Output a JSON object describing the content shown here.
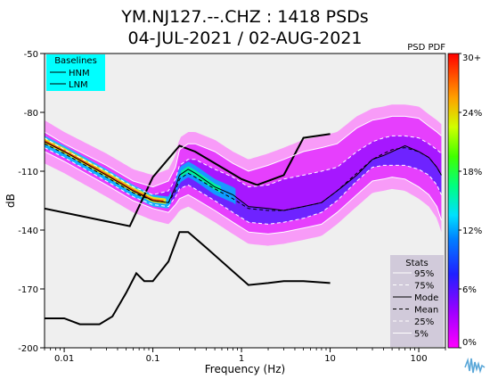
{
  "chart_data": {
    "type": "heatmap",
    "title": "YM.NJ127.--.CHZ : 1418 PSDs",
    "subtitle": "04-JUL-2021 / 02-AUG-2021",
    "xlabel": "Frequency (Hz)",
    "ylabel": "dB",
    "x_scale": "log",
    "xlim": [
      0.006,
      200
    ],
    "ylim": [
      -200,
      -50
    ],
    "x_ticks": [
      {
        "value": 0.01,
        "label": "0.01"
      },
      {
        "value": 0.1,
        "label": "0.1"
      },
      {
        "value": 1,
        "label": "1"
      },
      {
        "value": 10,
        "label": "10"
      },
      {
        "value": 100,
        "label": "100"
      }
    ],
    "y_ticks": [
      {
        "value": -50,
        "label": "-50"
      },
      {
        "value": -80,
        "label": "-80"
      },
      {
        "value": -110,
        "label": "-110"
      },
      {
        "value": -140,
        "label": "-140"
      },
      {
        "value": -170,
        "label": "-170"
      },
      {
        "value": -200,
        "label": "-200"
      }
    ],
    "colorbar": {
      "label": "PSD PDF",
      "ticks": [
        "0%",
        "6%",
        "12%",
        "18%",
        "24%",
        "30+"
      ],
      "colors": [
        "#ff00ff",
        "#8000ff",
        "#0000ff",
        "#00a0ff",
        "#00ffff",
        "#00ff80",
        "#40ff00",
        "#ffff00",
        "#ff8000",
        "#ff0000"
      ]
    },
    "baselines": {
      "title": "Baselines",
      "items": [
        "HNM",
        "LNM"
      ],
      "HNM": [
        [
          0.006,
          -129
        ],
        [
          0.055,
          -138
        ],
        [
          0.1,
          -113
        ],
        [
          0.2,
          -97
        ],
        [
          0.3,
          -100
        ],
        [
          1.0,
          -114
        ],
        [
          1.5,
          -117
        ],
        [
          3.0,
          -112
        ],
        [
          5.0,
          -93
        ],
        [
          10,
          -91
        ]
      ],
      "LNM": [
        [
          0.006,
          -185
        ],
        [
          0.01,
          -185
        ],
        [
          0.015,
          -188
        ],
        [
          0.025,
          -188
        ],
        [
          0.035,
          -184
        ],
        [
          0.05,
          -172
        ],
        [
          0.065,
          -162
        ],
        [
          0.08,
          -166
        ],
        [
          0.1,
          -166
        ],
        [
          0.15,
          -156
        ],
        [
          0.2,
          -141
        ],
        [
          0.25,
          -141
        ],
        [
          0.4,
          -149
        ],
        [
          0.8,
          -161
        ],
        [
          1.2,
          -168
        ],
        [
          2.0,
          -167
        ],
        [
          3.0,
          -166
        ],
        [
          5.0,
          -166
        ],
        [
          10,
          -167
        ]
      ]
    },
    "stats": {
      "title": "Stats",
      "items": [
        {
          "label": "95%",
          "style": "solid-white"
        },
        {
          "label": "75%",
          "style": "dashed-white"
        },
        {
          "label": "Mode",
          "style": "solid-black"
        },
        {
          "label": "Mean",
          "style": "dashed-black"
        },
        {
          "label": "25%",
          "style": "dashed-white"
        },
        {
          "label": "5%",
          "style": "solid-white"
        }
      ],
      "x": [
        0.006,
        0.01,
        0.03,
        0.06,
        0.1,
        0.15,
        0.18,
        0.2,
        0.25,
        0.3,
        0.5,
        0.8,
        1.2,
        2,
        3,
        5,
        8,
        12,
        20,
        30,
        40,
        50,
        70,
        100,
        130,
        160,
        180
      ],
      "p95": [
        -90,
        -96,
        -107,
        -115,
        -118,
        -115,
        -108,
        -99,
        -96,
        -96,
        -100,
        -106,
        -110,
        -107,
        -104,
        -100,
        -98,
        -96,
        -88,
        -84,
        -83,
        -82,
        -82,
        -83,
        -87,
        -90,
        -92
      ],
      "p75": [
        -93,
        -99,
        -110,
        -118,
        -122,
        -120,
        -114,
        -107,
        -104,
        -104,
        -109,
        -113,
        -118,
        -117,
        -114,
        -112,
        -110,
        -108,
        -100,
        -95,
        -93,
        -92,
        -92,
        -93,
        -96,
        -99,
        -101
      ],
      "mode": [
        -95,
        -100,
        -112,
        -120,
        -125,
        -126,
        -118,
        -112,
        -109,
        -111,
        -118,
        -122,
        -128,
        -129,
        -130,
        -128,
        -126,
        -120,
        -112,
        -104,
        -102,
        -100,
        -97,
        -100,
        -103,
        -108,
        -112
      ],
      "mean": [
        -96,
        -101,
        -113,
        -121,
        -125,
        -126,
        -120,
        -114,
        -111,
        -113,
        -119,
        -124,
        -129,
        -130,
        -130,
        -128,
        -126,
        -120,
        -111,
        -104,
        -101,
        -99,
        -98,
        -100,
        -103,
        -108,
        -112
      ],
      "p25": [
        -98,
        -103,
        -115,
        -123,
        -127,
        -128,
        -123,
        -119,
        -117,
        -119,
        -125,
        -131,
        -136,
        -137,
        -136,
        -134,
        -131,
        -125,
        -115,
        -108,
        -107,
        -107,
        -107,
        -109,
        -112,
        -117,
        -122
      ],
      "p5": [
        -100,
        -105,
        -117,
        -125,
        -129,
        -131,
        -127,
        -124,
        -122,
        -124,
        -130,
        -136,
        -141,
        -142,
        -141,
        -139,
        -137,
        -131,
        -122,
        -115,
        -114,
        -113,
        -114,
        -118,
        -122,
        -128,
        -135
      ]
    }
  }
}
